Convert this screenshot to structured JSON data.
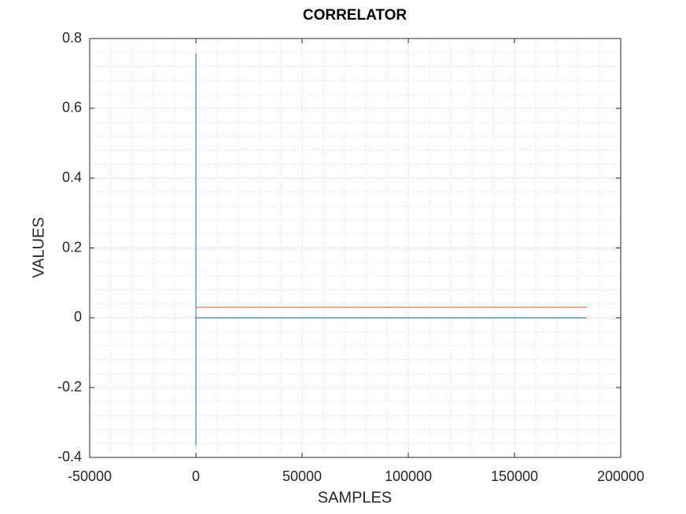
{
  "chart_data": {
    "type": "line",
    "title": "CORRELATOR",
    "xlabel": "SAMPLES",
    "ylabel": "VALUES",
    "series": [
      {
        "color": "#0072bd",
        "x": [
          0,
          0,
          0,
          184000
        ],
        "values": [
          -0.366,
          0.757,
          0,
          0
        ]
      },
      {
        "color": "#d95319",
        "x": [
          0,
          184000
        ],
        "values": [
          0.03,
          0.03
        ]
      }
    ],
    "xlim": [
      -50000,
      200000
    ],
    "xticks": [
      -50000,
      0,
      50000,
      100000,
      150000,
      200000
    ],
    "ylim": [
      -0.4,
      0.8
    ],
    "yticks": [
      -0.4,
      -0.2,
      0,
      0.2,
      0.4,
      0.6,
      0.8
    ],
    "grid": true,
    "minor_grid": true
  }
}
